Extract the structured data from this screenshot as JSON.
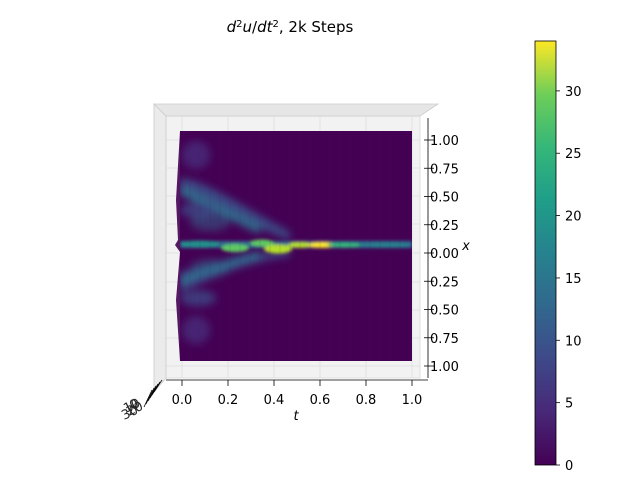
{
  "chart_data": {
    "type": "heatmap",
    "title_parts": {
      "d": "d",
      "sup1": "2",
      "u": "u",
      "slash": "/",
      "dt": "dt",
      "sup2": "2",
      "rest": ", 2k Steps"
    },
    "xlabel": "t",
    "ylabel": "x",
    "x_ticks": [
      "0.0",
      "0.2",
      "0.4",
      "0.6",
      "0.8",
      "1.0"
    ],
    "x_tick_values": [
      0.0,
      0.2,
      0.4,
      0.6,
      0.8,
      1.0
    ],
    "y_ticks": [
      "1.00",
      "0.75",
      "0.50",
      "0.25",
      "0.00",
      "0.25",
      "0.50",
      "0.75",
      "1.00"
    ],
    "y_tick_values": [
      1.0,
      0.75,
      0.5,
      0.25,
      0.0,
      -0.25,
      -0.5,
      -0.75,
      -1.0
    ],
    "xlim": [
      0,
      1
    ],
    "ylim": [
      -1,
      1
    ],
    "colorbar": {
      "ticks": [
        "0",
        "5",
        "10",
        "15",
        "20",
        "25",
        "30"
      ],
      "tick_values": [
        0,
        5,
        10,
        15,
        20,
        25,
        30
      ],
      "range": [
        0,
        34
      ]
    },
    "features": [
      {
        "t": 0.05,
        "x": 0.62,
        "value": 8,
        "note": "upper left lobe"
      },
      {
        "t": 0.05,
        "x": -0.55,
        "value": 8,
        "note": "lower left lobe"
      },
      {
        "t": 0.25,
        "x": 0.0,
        "value": 30
      },
      {
        "t": 0.45,
        "x": 0.0,
        "value": 28
      },
      {
        "t": 0.55,
        "x": 0.02,
        "value": 32
      }
    ]
  }
}
